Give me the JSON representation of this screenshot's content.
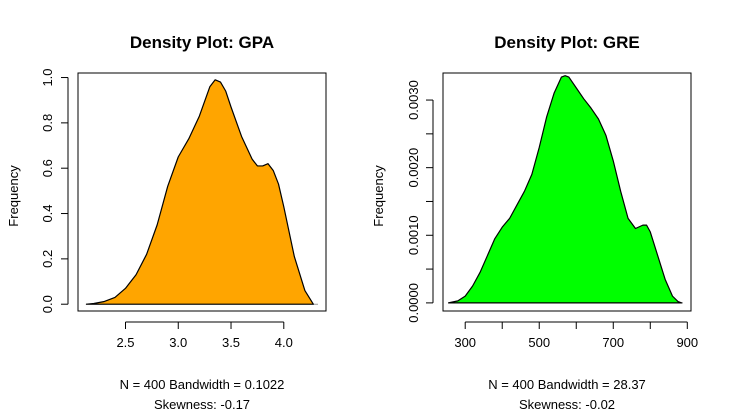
{
  "chart_data": [
    {
      "type": "area",
      "title": "Density Plot: GPA",
      "ylabel": "Frequency",
      "xlabel_line1": "N = 400   Bandwidth = 0.1022",
      "xlabel_line2": "Skewness: -0.17",
      "fill_color": "#FFA500",
      "xlim": [
        2.05,
        4.4
      ],
      "ylim": [
        -0.03,
        1.02
      ],
      "x_ticks": [
        2.5,
        3.0,
        3.5,
        4.0
      ],
      "x_tick_labels": [
        "2.5",
        "3.0",
        "3.5",
        "4.0"
      ],
      "y_ticks": [
        0.0,
        0.2,
        0.4,
        0.6,
        0.8,
        1.0
      ],
      "y_tick_labels": [
        "0.0",
        "0.2",
        "0.4",
        "0.6",
        "0.8",
        "1.0"
      ],
      "x": [
        2.13,
        2.2,
        2.3,
        2.4,
        2.5,
        2.6,
        2.7,
        2.8,
        2.9,
        3.0,
        3.1,
        3.2,
        3.3,
        3.35,
        3.4,
        3.45,
        3.5,
        3.6,
        3.7,
        3.75,
        3.8,
        3.85,
        3.9,
        3.95,
        4.0,
        4.1,
        4.2,
        4.28
      ],
      "y": [
        0.0,
        0.003,
        0.012,
        0.03,
        0.07,
        0.13,
        0.22,
        0.35,
        0.52,
        0.65,
        0.73,
        0.83,
        0.96,
        0.99,
        0.98,
        0.94,
        0.87,
        0.74,
        0.64,
        0.61,
        0.61,
        0.62,
        0.59,
        0.53,
        0.43,
        0.21,
        0.06,
        0.0
      ]
    },
    {
      "type": "area",
      "title": "Density Plot: GRE",
      "ylabel": "Frequency",
      "xlabel_line1": "N = 400   Bandwidth = 28.37",
      "xlabel_line2": "Skewness: -0.02",
      "fill_color": "#00FF00",
      "xlim": [
        240,
        910
      ],
      "ylim": [
        -0.00012,
        0.0034
      ],
      "x_ticks": [
        300,
        400,
        500,
        600,
        700,
        800,
        900
      ],
      "x_tick_labels": [
        "300",
        "",
        "500",
        "",
        "700",
        "",
        "900"
      ],
      "y_ticks": [
        0.0,
        0.0005,
        0.001,
        0.0015,
        0.002,
        0.0025,
        0.003
      ],
      "y_tick_labels": [
        "0.0000",
        "",
        "0.0010",
        "",
        "0.0020",
        "",
        "0.0030"
      ],
      "x": [
        255,
        280,
        300,
        320,
        340,
        360,
        380,
        400,
        420,
        440,
        460,
        480,
        500,
        520,
        540,
        560,
        570,
        580,
        600,
        620,
        640,
        660,
        680,
        700,
        720,
        740,
        760,
        780,
        790,
        800,
        820,
        840,
        860,
        875,
        885
      ],
      "y": [
        0.0,
        3e-05,
        0.0001,
        0.00025,
        0.00045,
        0.0007,
        0.00095,
        0.00112,
        0.00125,
        0.00145,
        0.00165,
        0.0019,
        0.0023,
        0.00275,
        0.0031,
        0.00334,
        0.00336,
        0.00334,
        0.00318,
        0.00302,
        0.00288,
        0.00272,
        0.00248,
        0.0021,
        0.00165,
        0.00125,
        0.0011,
        0.00115,
        0.00115,
        0.00105,
        0.0007,
        0.00035,
        0.0001,
        2e-05,
        0.0
      ]
    }
  ]
}
